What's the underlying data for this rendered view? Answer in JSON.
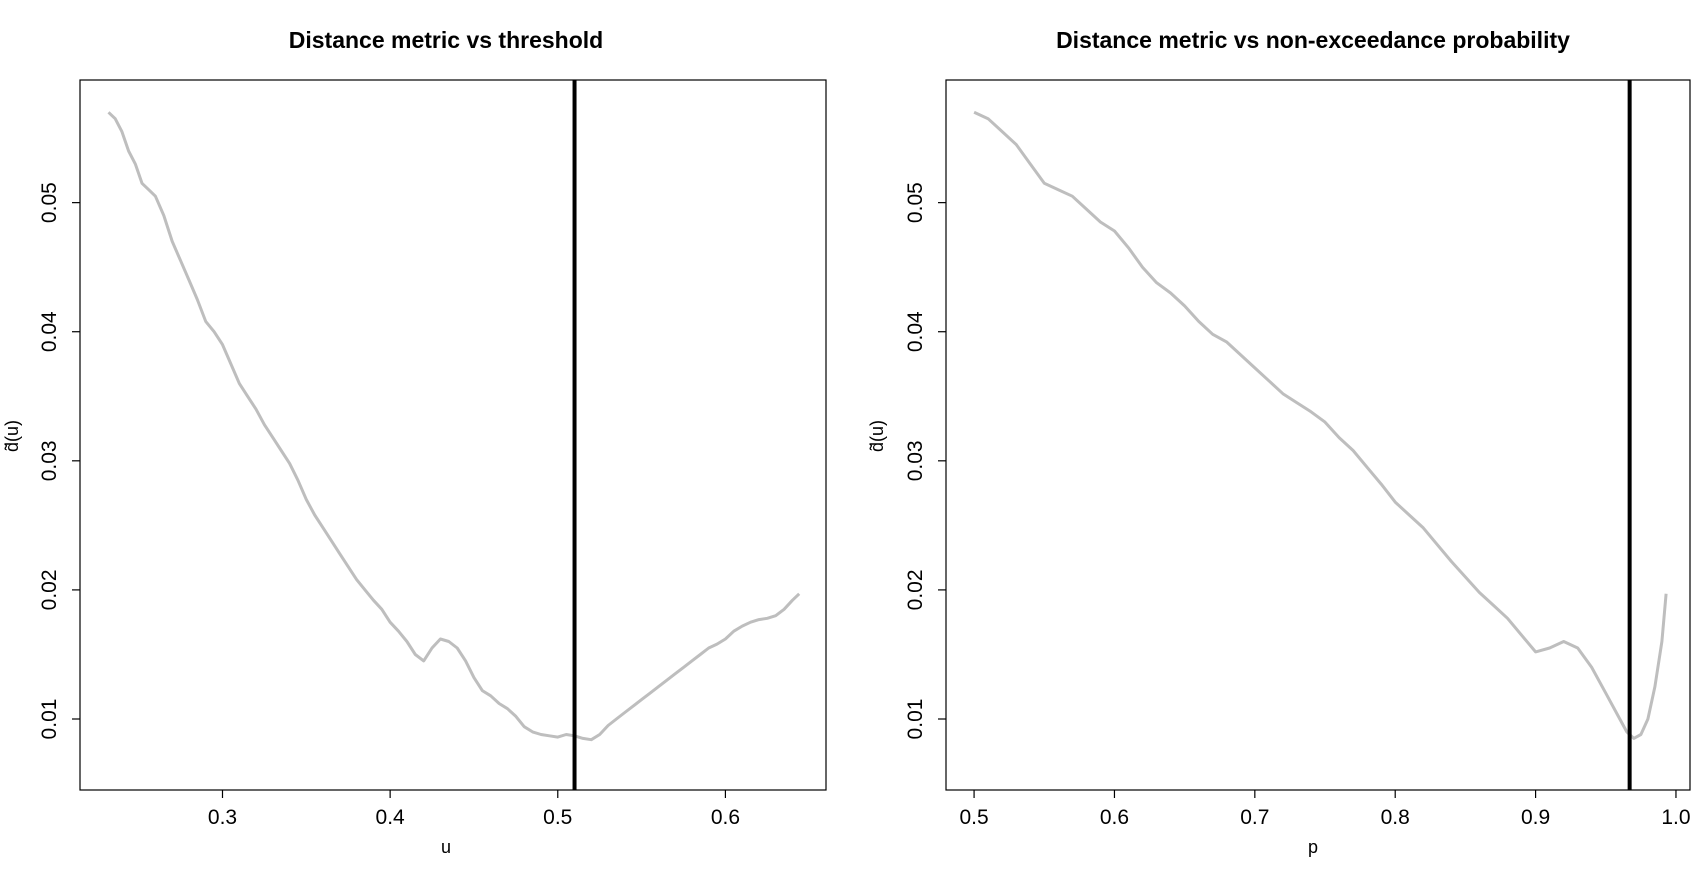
{
  "chart_data": [
    {
      "type": "line",
      "title": "Distance metric vs threshold",
      "xlabel": "u",
      "ylabel": "d̃(u)",
      "xlim": [
        0.215,
        0.66
      ],
      "ylim": [
        0.0045,
        0.0595
      ],
      "x_ticks": [
        0.3,
        0.4,
        0.5,
        0.6
      ],
      "x_tick_labels": [
        "0.3",
        "0.4",
        "0.5",
        "0.6"
      ],
      "y_ticks": [
        0.01,
        0.02,
        0.03,
        0.04,
        0.05
      ],
      "y_tick_labels": [
        "0.01",
        "0.02",
        "0.03",
        "0.04",
        "0.05"
      ],
      "grid": false,
      "vline": 0.51,
      "colors": {
        "series": "#bebebe",
        "vline": "#000000"
      },
      "series": [
        {
          "x": [
            0.232,
            0.236,
            0.24,
            0.244,
            0.248,
            0.252,
            0.256,
            0.26,
            0.265,
            0.27,
            0.275,
            0.28,
            0.285,
            0.29,
            0.295,
            0.3,
            0.305,
            0.31,
            0.315,
            0.32,
            0.325,
            0.33,
            0.335,
            0.34,
            0.345,
            0.35,
            0.355,
            0.36,
            0.365,
            0.37,
            0.375,
            0.38,
            0.385,
            0.39,
            0.395,
            0.4,
            0.405,
            0.41,
            0.415,
            0.42,
            0.425,
            0.43,
            0.435,
            0.44,
            0.445,
            0.45,
            0.455,
            0.46,
            0.465,
            0.47,
            0.475,
            0.48,
            0.485,
            0.49,
            0.495,
            0.5,
            0.505,
            0.51,
            0.515,
            0.52,
            0.525,
            0.53,
            0.535,
            0.54,
            0.545,
            0.55,
            0.555,
            0.56,
            0.565,
            0.57,
            0.575,
            0.58,
            0.585,
            0.59,
            0.595,
            0.6,
            0.605,
            0.61,
            0.615,
            0.62,
            0.625,
            0.63,
            0.635,
            0.64,
            0.644
          ],
          "y": [
            0.057,
            0.0565,
            0.0555,
            0.054,
            0.053,
            0.0515,
            0.051,
            0.0505,
            0.049,
            0.047,
            0.0455,
            0.044,
            0.0425,
            0.0408,
            0.04,
            0.039,
            0.0375,
            0.036,
            0.035,
            0.034,
            0.0328,
            0.0318,
            0.0308,
            0.0298,
            0.0285,
            0.027,
            0.0258,
            0.0248,
            0.0238,
            0.0228,
            0.0218,
            0.0208,
            0.02,
            0.0192,
            0.0185,
            0.0175,
            0.0168,
            0.016,
            0.015,
            0.0145,
            0.0155,
            0.0162,
            0.016,
            0.0155,
            0.0145,
            0.0132,
            0.0122,
            0.0118,
            0.0112,
            0.0108,
            0.0102,
            0.0094,
            0.009,
            0.0088,
            0.0087,
            0.0086,
            0.0088,
            0.0087,
            0.0085,
            0.0084,
            0.0088,
            0.0095,
            0.01,
            0.0105,
            0.011,
            0.0115,
            0.012,
            0.0125,
            0.013,
            0.0135,
            0.014,
            0.0145,
            0.015,
            0.0155,
            0.0158,
            0.0162,
            0.0168,
            0.0172,
            0.0175,
            0.0177,
            0.0178,
            0.018,
            0.0185,
            0.0192,
            0.0197
          ]
        }
      ]
    },
    {
      "type": "line",
      "title": "Distance metric vs non-exceedance probability",
      "xlabel": "p",
      "ylabel": "d̃(u)",
      "xlim": [
        0.48,
        1.01
      ],
      "ylim": [
        0.0045,
        0.0595
      ],
      "x_ticks": [
        0.5,
        0.6,
        0.7,
        0.8,
        0.9,
        1.0
      ],
      "x_tick_labels": [
        "0.5",
        "0.6",
        "0.7",
        "0.8",
        "0.9",
        "1.0"
      ],
      "y_ticks": [
        0.01,
        0.02,
        0.03,
        0.04,
        0.05
      ],
      "y_tick_labels": [
        "0.01",
        "0.02",
        "0.03",
        "0.04",
        "0.05"
      ],
      "grid": false,
      "vline": 0.967,
      "colors": {
        "series": "#bebebe",
        "vline": "#000000"
      },
      "series": [
        {
          "x": [
            0.5,
            0.51,
            0.52,
            0.53,
            0.54,
            0.55,
            0.56,
            0.57,
            0.58,
            0.59,
            0.6,
            0.61,
            0.62,
            0.63,
            0.64,
            0.65,
            0.66,
            0.67,
            0.68,
            0.69,
            0.7,
            0.71,
            0.72,
            0.73,
            0.74,
            0.75,
            0.76,
            0.77,
            0.78,
            0.79,
            0.8,
            0.81,
            0.82,
            0.83,
            0.84,
            0.85,
            0.86,
            0.87,
            0.88,
            0.89,
            0.9,
            0.91,
            0.92,
            0.93,
            0.94,
            0.95,
            0.96,
            0.965,
            0.97,
            0.975,
            0.98,
            0.985,
            0.99,
            0.993
          ],
          "y": [
            0.057,
            0.0565,
            0.0555,
            0.0545,
            0.053,
            0.0515,
            0.051,
            0.0505,
            0.0495,
            0.0485,
            0.0478,
            0.0465,
            0.045,
            0.0438,
            0.043,
            0.042,
            0.0408,
            0.0398,
            0.0392,
            0.0382,
            0.0372,
            0.0362,
            0.0352,
            0.0345,
            0.0338,
            0.033,
            0.0318,
            0.0308,
            0.0295,
            0.0282,
            0.0268,
            0.0258,
            0.0248,
            0.0235,
            0.0222,
            0.021,
            0.0198,
            0.0188,
            0.0178,
            0.0165,
            0.0152,
            0.0155,
            0.016,
            0.0155,
            0.014,
            0.012,
            0.01,
            0.009,
            0.0085,
            0.0088,
            0.01,
            0.0125,
            0.016,
            0.0197
          ]
        }
      ]
    }
  ]
}
